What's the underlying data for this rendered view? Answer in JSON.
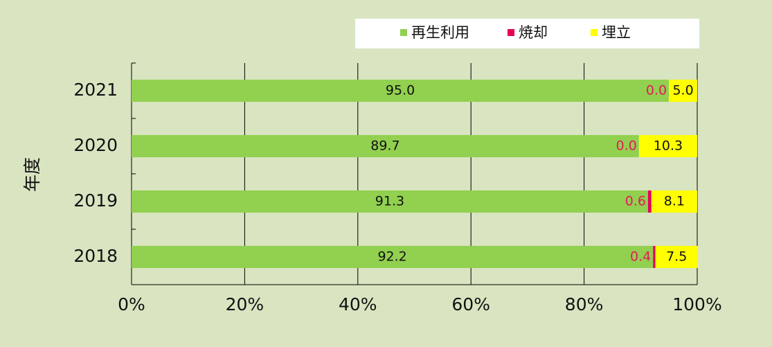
{
  "chart_data": {
    "type": "bar",
    "orientation": "horizontal",
    "stacked": true,
    "y_label": "年度",
    "categories": [
      "2021",
      "2020",
      "2019",
      "2018"
    ],
    "series": [
      {
        "name": "再生利用",
        "color": "#92d050",
        "label_color": "#111111",
        "values": [
          95.0,
          89.7,
          91.3,
          92.2
        ],
        "value_labels": [
          "95.0",
          "89.7",
          "91.3",
          "92.2"
        ]
      },
      {
        "name": "焼却",
        "color": "#e6005a",
        "label_color": "#e6195a",
        "values": [
          0.0,
          0.0,
          0.6,
          0.4
        ],
        "value_labels": [
          "0.0",
          "0.0",
          "0.6",
          "0.4"
        ]
      },
      {
        "name": "埋立",
        "color": "#ffff00",
        "label_color": "#111111",
        "values": [
          5.0,
          10.3,
          8.1,
          7.5
        ],
        "value_labels": [
          "5.0",
          "10.3",
          "8.1",
          "7.5"
        ]
      }
    ],
    "xlim": [
      0,
      100
    ],
    "xticks": [
      {
        "value": 0,
        "label": "0%"
      },
      {
        "value": 20,
        "label": "20%"
      },
      {
        "value": 40,
        "label": "40%"
      },
      {
        "value": 60,
        "label": "60%"
      },
      {
        "value": 80,
        "label": "80%"
      },
      {
        "value": 100,
        "label": "100%"
      }
    ],
    "grid": true,
    "legend": "top-right"
  }
}
